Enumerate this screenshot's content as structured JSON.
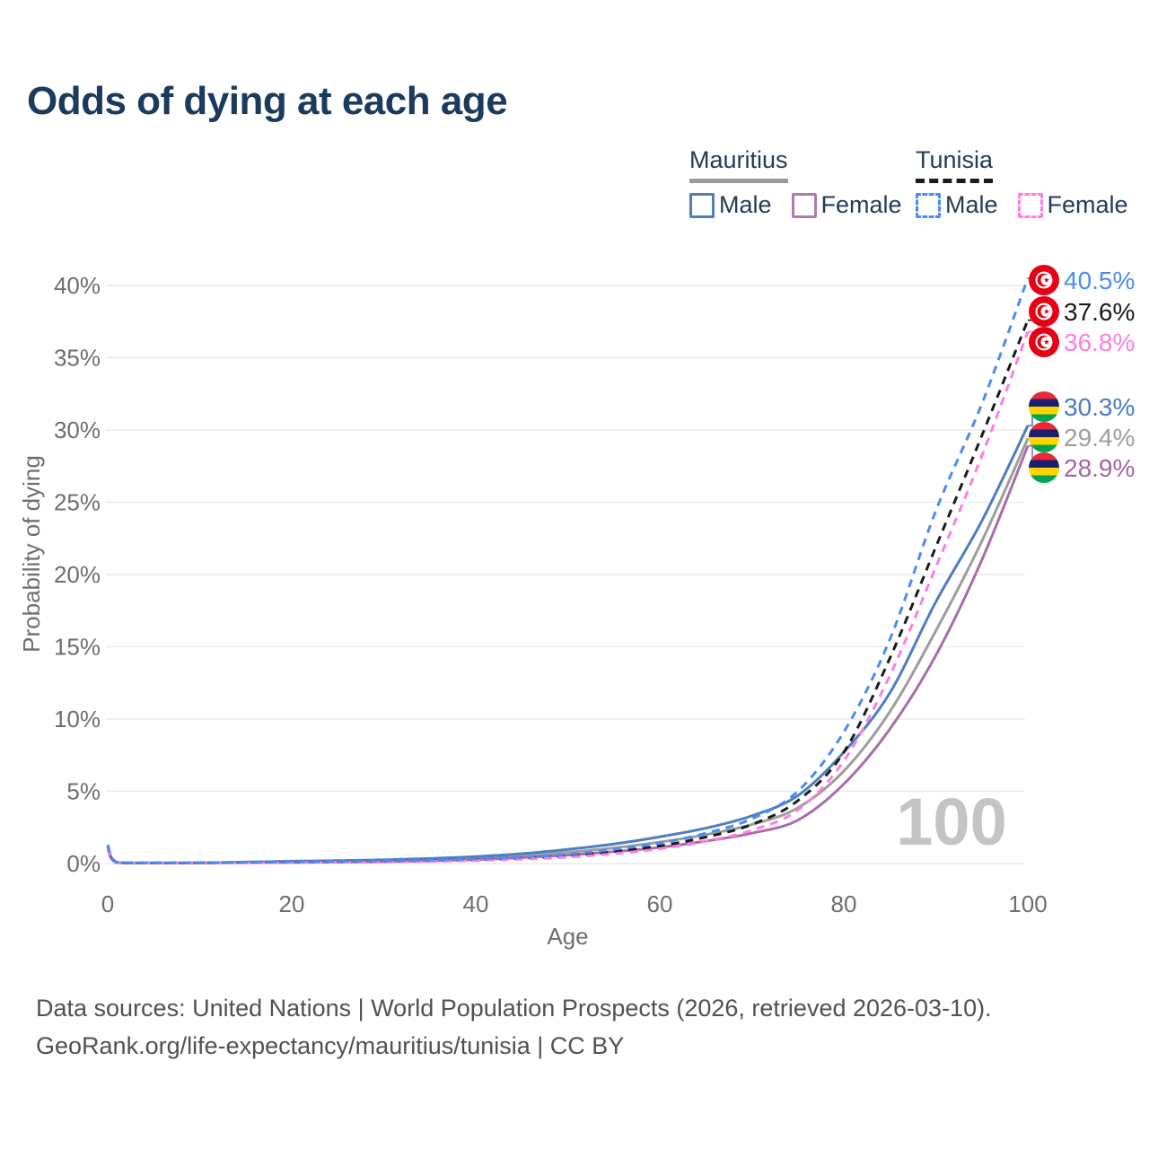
{
  "title": "Odds of dying at each age",
  "legend": {
    "groups": [
      {
        "label": "Mauritius",
        "line_style": "solid",
        "header_color": "#9a9a9a",
        "items": [
          {
            "label": "Male",
            "color": "#4d7ec0",
            "style": "solid"
          },
          {
            "label": "Female",
            "color": "#b478b0",
            "style": "solid"
          }
        ]
      },
      {
        "label": "Tunisia",
        "line_style": "dashed",
        "header_color": "#1b1b1b",
        "items": [
          {
            "label": "Male",
            "color": "#4a8cf5",
            "style": "dashed"
          },
          {
            "label": "Female",
            "color": "#ff7de2",
            "style": "dashed"
          }
        ]
      }
    ]
  },
  "chart_data": {
    "type": "line",
    "title": "Odds of dying at each age",
    "xlabel": "Age",
    "ylabel": "Probability of dying",
    "xlim": [
      0,
      100
    ],
    "ylim": [
      0,
      40
    ],
    "grid": true,
    "legend_position": "top-right",
    "hover_age": "100",
    "x_ticks": [
      "0",
      "20",
      "40",
      "60",
      "80",
      "100"
    ],
    "y_ticks": [
      "0%",
      "5%",
      "10%",
      "15%",
      "20%",
      "25%",
      "30%",
      "35%",
      "40%"
    ],
    "x": [
      0,
      1,
      5,
      10,
      15,
      20,
      25,
      30,
      35,
      40,
      45,
      50,
      55,
      60,
      65,
      70,
      75,
      80,
      85,
      90,
      95,
      100
    ],
    "series": [
      {
        "id": "mauritius-both",
        "name": "Mauritius Both sexes",
        "country": "Mauritius",
        "sex": "Both",
        "color": "#9d9d9d",
        "label_color": "#9e9e9e",
        "dashed": false,
        "flag_icon": "mauritius-flag-icon",
        "end_label": "29.4%",
        "end_value": 29.4,
        "values": [
          1.1,
          0.07,
          0.035,
          0.045,
          0.08,
          0.12,
          0.15,
          0.2,
          0.27,
          0.38,
          0.54,
          0.78,
          1.08,
          1.48,
          2.0,
          2.7,
          3.85,
          6.4,
          10.5,
          16.1,
          22.3,
          29.4
        ]
      },
      {
        "id": "mauritius-female",
        "name": "Mauritius Female",
        "country": "Mauritius",
        "sex": "Female",
        "color": "#aa6bae",
        "label_color": "#a565a8",
        "dashed": false,
        "flag_icon": "mauritius-flag-icon",
        "end_label": "28.9%",
        "end_value": 28.9,
        "values": [
          1.0,
          0.06,
          0.03,
          0.04,
          0.06,
          0.08,
          0.1,
          0.13,
          0.19,
          0.27,
          0.4,
          0.58,
          0.82,
          1.12,
          1.55,
          2.1,
          3.0,
          5.5,
          9.3,
          14.4,
          21.0,
          28.9
        ]
      },
      {
        "id": "mauritius-male",
        "name": "Mauritius Male",
        "country": "Mauritius",
        "sex": "Male",
        "color": "#4d7ec0",
        "label_color": "#4a7cc2",
        "dashed": false,
        "flag_icon": "mauritius-flag-icon",
        "end_label": "30.3%",
        "end_value": 30.3,
        "values": [
          1.2,
          0.08,
          0.04,
          0.05,
          0.1,
          0.16,
          0.2,
          0.26,
          0.35,
          0.48,
          0.68,
          0.98,
          1.35,
          1.85,
          2.45,
          3.3,
          4.7,
          7.7,
          11.8,
          18.1,
          23.7,
          30.3
        ]
      },
      {
        "id": "tunisia-both",
        "name": "Tunisia Both sexes",
        "country": "Tunisia",
        "sex": "Both",
        "color": "#1b1b1b",
        "label_color": "#1b1b1b",
        "dashed": true,
        "flag_icon": "tunisia-flag-icon",
        "end_label": "37.6%",
        "end_value": 37.6,
        "values": [
          1.2,
          0.08,
          0.038,
          0.048,
          0.07,
          0.1,
          0.13,
          0.15,
          0.2,
          0.27,
          0.37,
          0.54,
          0.83,
          1.22,
          1.83,
          2.7,
          4.35,
          7.7,
          14.2,
          21.9,
          29.6,
          37.6
        ]
      },
      {
        "id": "tunisia-female",
        "name": "Tunisia Female",
        "country": "Tunisia",
        "sex": "Female",
        "color": "#ff7de2",
        "label_color": "#ff7de2",
        "dashed": true,
        "flag_icon": "tunisia-flag-icon",
        "end_label": "36.8%",
        "end_value": 36.8,
        "values": [
          1.1,
          0.07,
          0.03,
          0.04,
          0.05,
          0.07,
          0.09,
          0.11,
          0.15,
          0.21,
          0.3,
          0.44,
          0.68,
          1.02,
          1.55,
          2.3,
          3.7,
          7.1,
          13.0,
          20.5,
          28.2,
          36.8
        ]
      },
      {
        "id": "tunisia-male",
        "name": "Tunisia Male",
        "country": "Tunisia",
        "sex": "Male",
        "color": "#4a8cf5",
        "label_color": "#4a8cf5",
        "dashed": true,
        "flag_icon": "tunisia-flag-icon",
        "end_label": "40.5%",
        "end_value": 40.5,
        "values": [
          1.3,
          0.09,
          0.045,
          0.055,
          0.09,
          0.13,
          0.16,
          0.19,
          0.24,
          0.32,
          0.44,
          0.64,
          0.98,
          1.42,
          2.1,
          3.1,
          5.0,
          9.1,
          15.5,
          24.4,
          31.8,
          40.5
        ]
      }
    ],
    "flag_colors": {
      "tunisia_red": "#E70013",
      "mauritius_red": "#EA2839",
      "mauritius_blue": "#1A206D",
      "mauritius_yellow": "#FFD500",
      "mauritius_green": "#00A551"
    }
  },
  "footer": {
    "line1": "Data sources: United Nations | World Population Prospects (2026, retrieved 2026-03-10).",
    "line2": "GeoRank.org/life-expectancy/mauritius/tunisia | CC BY"
  }
}
